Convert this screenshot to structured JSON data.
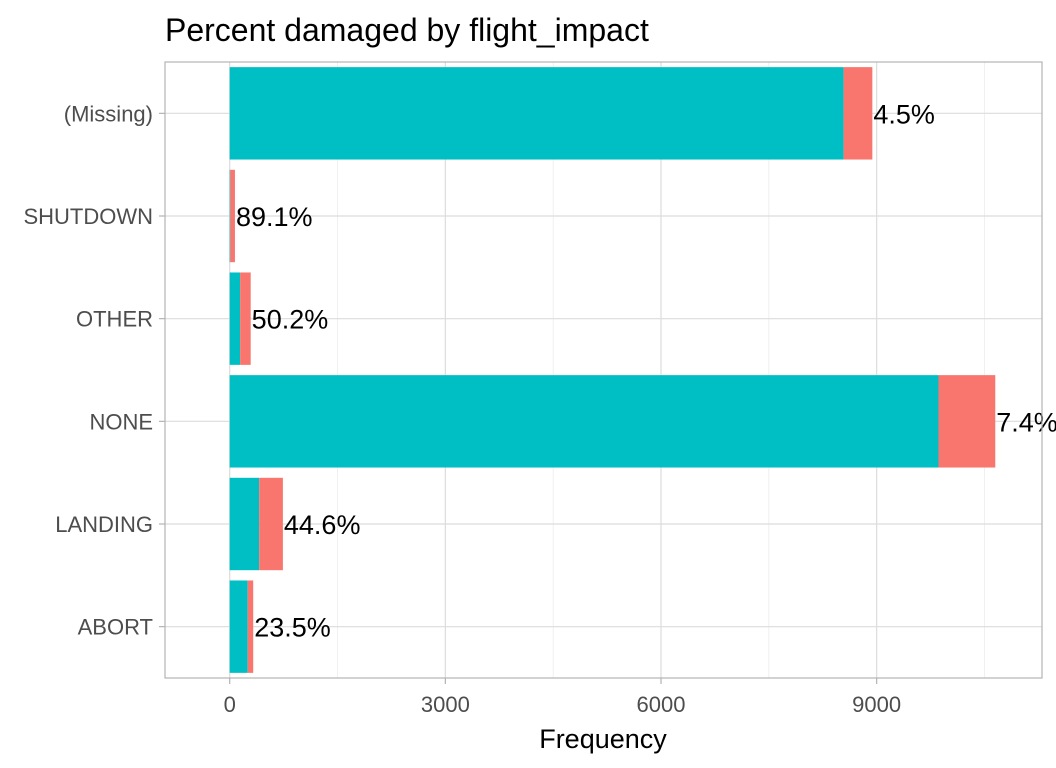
{
  "chart_data": {
    "type": "bar",
    "orientation": "horizontal",
    "stacked": true,
    "title": "Percent damaged by flight_impact",
    "xlabel": "Frequency",
    "ylabel": "",
    "xlim": [
      -900,
      11300
    ],
    "xticks": [
      0,
      3000,
      6000,
      9000
    ],
    "grid": true,
    "legend": "none",
    "categories": [
      "(Missing)",
      "SHUTDOWN",
      "OTHER",
      "NONE",
      "LANDING",
      "ABORT"
    ],
    "series": [
      {
        "key": "not-damaged",
        "color": "#00BFC4",
        "values": [
          8540,
          8,
          145,
          9860,
          410,
          250
        ]
      },
      {
        "key": "damaged",
        "color": "#F8766D",
        "values": [
          400,
          65,
          147,
          790,
          330,
          77
        ]
      }
    ],
    "data_labels": [
      "4.5%",
      "89.1%",
      "50.2%",
      "7.4%",
      "44.6%",
      "23.5%"
    ]
  }
}
